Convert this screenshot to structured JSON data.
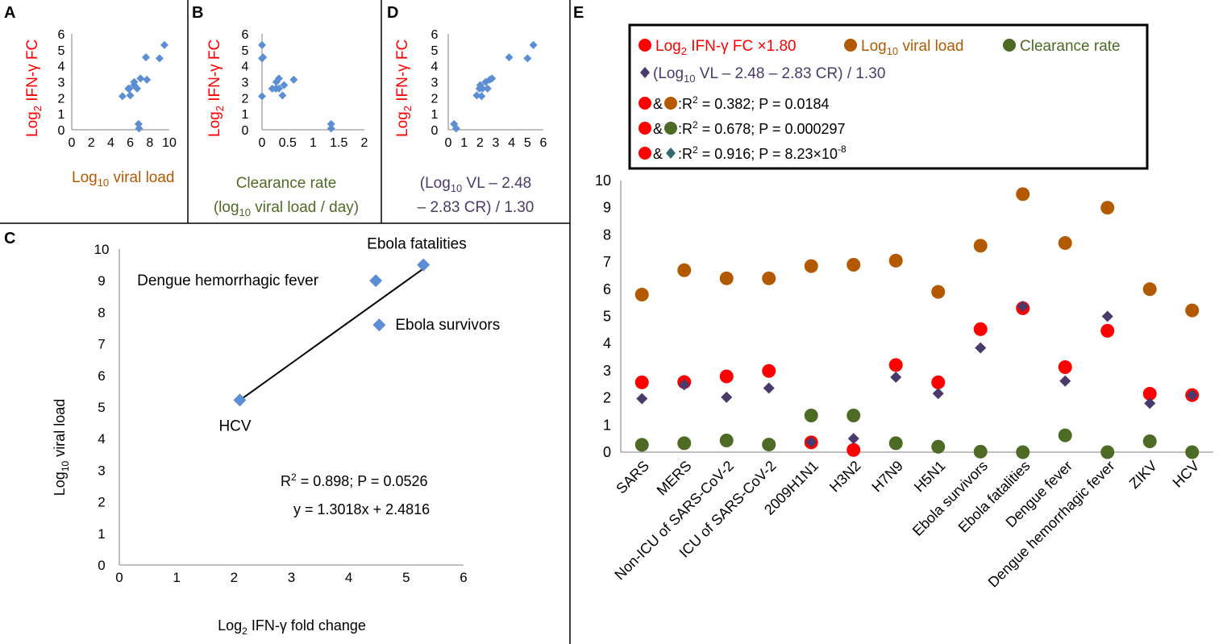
{
  "colors": {
    "red": "#ff0000",
    "brown": "#b35900",
    "green": "#4e6b25",
    "purple": "#4a3a6b",
    "marker_blue": "#5b8ed4",
    "teal": "#2e6b6b",
    "axis": "#808080"
  },
  "chart_data": [
    {
      "id": "A",
      "type": "scatter",
      "panel_label": "A",
      "ylabel_main": "Log",
      "ylabel_sub": "2",
      "ylabel_rest": " IFN-γ FC",
      "xlabel_main": "Log",
      "xlabel_sub": "10",
      "xlabel_rest": " viral load",
      "xlim": [
        0,
        10
      ],
      "ylim": [
        0,
        6
      ],
      "xticks": [
        "0",
        "2",
        "4",
        "6",
        "8",
        "10"
      ],
      "yticks": [
        "0",
        "1",
        "2",
        "3",
        "4",
        "5",
        "6"
      ],
      "x": [
        5.8,
        6.7,
        6.4,
        6.4,
        6.85,
        6.9,
        7.05,
        5.9,
        7.6,
        9.5,
        7.7,
        9.0,
        6.0,
        5.2
      ],
      "y": [
        2.57,
        2.58,
        2.79,
        2.99,
        0.36,
        0.08,
        3.21,
        2.57,
        4.53,
        5.3,
        3.13,
        4.47,
        2.15,
        2.1
      ]
    },
    {
      "id": "B",
      "type": "scatter",
      "panel_label": "B",
      "ylabel_main": "Log",
      "ylabel_sub": "2",
      "ylabel_rest": " IFN-γ FC",
      "xlabel_line1": "Clearance rate",
      "xlabel_line2_a": "(log",
      "xlabel_line2_sub": "10",
      "xlabel_line2_b": " viral load / day)",
      "xlim": [
        0,
        2
      ],
      "ylim": [
        0,
        6
      ],
      "xticks": [
        "0",
        "0.5",
        "1",
        "1.5",
        "2"
      ],
      "yticks": [
        "0",
        "1",
        "2",
        "3",
        "4",
        "5",
        "6"
      ],
      "x": [
        0.27,
        0.33,
        0.43,
        0.28,
        1.35,
        1.35,
        0.33,
        0.2,
        0.02,
        0.0,
        0.62,
        0.0,
        0.4,
        0.0
      ],
      "y": [
        2.57,
        2.58,
        2.79,
        2.99,
        0.36,
        0.08,
        3.21,
        2.57,
        4.53,
        5.3,
        3.13,
        4.47,
        2.15,
        2.1
      ]
    },
    {
      "id": "D",
      "type": "scatter",
      "panel_label": "D",
      "ylabel_main": "Log",
      "ylabel_sub": "2",
      "ylabel_rest": " IFN-γ FC",
      "xlabel_line1_a": "(Log",
      "xlabel_line1_sub": "10",
      "xlabel_line1_b": " VL – 2.48",
      "xlabel_line2": "– 2.83 CR) / 1.30",
      "xlim": [
        0,
        6
      ],
      "ylim": [
        0,
        6
      ],
      "xticks": [
        "0",
        "1",
        "2",
        "3",
        "4",
        "5",
        "6"
      ],
      "yticks": [
        "0",
        "1",
        "2",
        "3",
        "4",
        "5",
        "6"
      ],
      "x": [
        1.97,
        2.48,
        2.02,
        2.36,
        0.37,
        0.5,
        2.76,
        2.16,
        3.84,
        5.37,
        2.62,
        5.0,
        1.8,
        2.1
      ],
      "y": [
        2.57,
        2.58,
        2.79,
        2.99,
        0.36,
        0.08,
        3.21,
        2.57,
        4.53,
        5.3,
        3.13,
        4.47,
        2.15,
        2.1
      ]
    },
    {
      "id": "C",
      "type": "scatter",
      "panel_label": "C",
      "ylabel_main": "Log",
      "ylabel_sub": "10",
      "ylabel_rest": " viral load",
      "xlabel_main": "Log",
      "xlabel_sub": "2",
      "xlabel_rest": " IFN-γ fold change",
      "xlim": [
        0,
        6
      ],
      "ylim": [
        0,
        10
      ],
      "xticks": [
        "0",
        "1",
        "2",
        "3",
        "4",
        "5",
        "6"
      ],
      "yticks": [
        "0",
        "1",
        "2",
        "3",
        "4",
        "5",
        "6",
        "7",
        "8",
        "9",
        "10"
      ],
      "points": [
        {
          "label": "Ebola fatalities",
          "x": 5.3,
          "y": 9.5
        },
        {
          "label": "Dengue hemorrhagic fever",
          "x": 4.47,
          "y": 9.0
        },
        {
          "label": "Ebola survivors",
          "x": 4.53,
          "y": 7.6
        },
        {
          "label": "HCV",
          "x": 2.1,
          "y": 5.22
        }
      ],
      "trendline": {
        "slope": 1.3018,
        "intercept": 2.4816,
        "x_range": [
          2.1,
          5.3
        ]
      },
      "stat_sup": "2",
      "stat_text": " = 0.898; P = 0.0526",
      "stat_r": "R",
      "equation": "y = 1.3018x + 2.4816"
    },
    {
      "id": "E",
      "type": "scatter",
      "panel_label": "E",
      "ylim": [
        0,
        10
      ],
      "yticks": [
        "0",
        "1",
        "2",
        "3",
        "4",
        "5",
        "6",
        "7",
        "8",
        "9",
        "10"
      ],
      "categories": [
        "SARS",
        "MERS",
        "Non-ICU of SARS-CoV-2",
        "ICU of SARS-CoV-2",
        "2009H1N1",
        "H3N2",
        "H7N9",
        "H5N1",
        "Ebola survivors",
        "Ebola fatalities",
        "Dengue fever",
        "Dengue hemorrhagic fever",
        "ZIKV",
        "HCV"
      ],
      "series": [
        {
          "name": "Log10 viral load",
          "color": "#b35900",
          "marker": "circle",
          "values": [
            5.8,
            6.7,
            6.4,
            6.4,
            6.85,
            6.9,
            7.05,
            5.9,
            7.6,
            9.5,
            7.7,
            9.0,
            6.0,
            5.22
          ]
        },
        {
          "name": "Log2 IFN-γ FC ×1.80",
          "color": "#ff0000",
          "marker": "circle",
          "values": [
            2.57,
            2.58,
            2.79,
            2.99,
            0.36,
            0.08,
            3.21,
            2.57,
            4.53,
            5.3,
            3.13,
            4.47,
            2.15,
            2.1
          ]
        },
        {
          "name": "(Log10 VL – 2.48 – 2.83 CR) / 1.30",
          "color": "#4a3a6b",
          "marker": "diamond",
          "values": [
            1.97,
            2.48,
            2.02,
            2.36,
            0.37,
            0.5,
            2.76,
            2.16,
            3.84,
            5.37,
            2.62,
            5.0,
            1.8,
            2.1
          ]
        },
        {
          "name": "Clearance rate",
          "color": "#4e6b25",
          "marker": "circle",
          "values": [
            0.27,
            0.33,
            0.43,
            0.28,
            1.35,
            1.35,
            0.33,
            0.2,
            0.02,
            0.0,
            0.62,
            0.0,
            0.4,
            0.0
          ]
        }
      ],
      "legend": {
        "red_a": "Log",
        "red_sub": "2",
        "red_b": " IFN-γ FC ×1.80",
        "brown_a": "Log",
        "brown_sub": "10",
        "brown_b": " viral load",
        "green": "Clearance rate",
        "purple_a": "(Log",
        "purple_sub": "10",
        "purple_b": " VL – 2.48 – 2.83 CR) / 1.30",
        "amp": "&",
        "colon": ":",
        "r": "R",
        "sup2": "2",
        "stat1": " = 0.382; P = 0.0184",
        "stat2": " = 0.678; P = 0.000297",
        "stat3_a": " = 0.916; P = 8.23×10",
        "stat3_exp": "-8"
      }
    }
  ]
}
